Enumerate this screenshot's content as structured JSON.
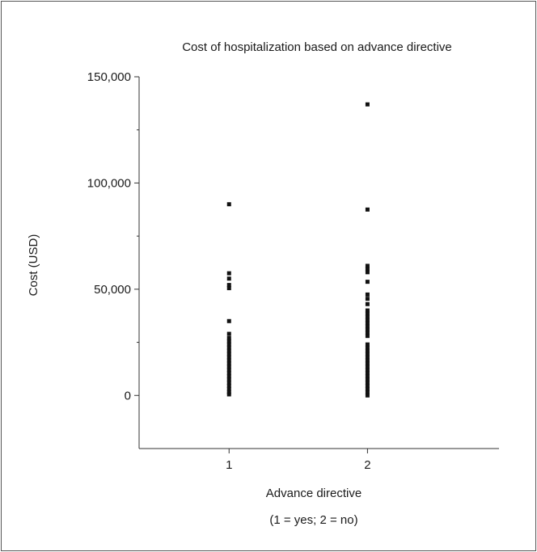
{
  "chart_data": {
    "type": "scatter",
    "title": "Cost of hospitalization based on advance directive",
    "xlabel": "Advance directive",
    "xlabel_note": "(1 = yes; 2 = no)",
    "ylabel": "Cost (USD)",
    "x_ticks": [
      {
        "value": 1,
        "label": "1"
      },
      {
        "value": 2,
        "label": "2"
      }
    ],
    "y_ticks": [
      {
        "value": 0,
        "label": "0"
      },
      {
        "value": 50000,
        "label": "50,000"
      },
      {
        "value": 100000,
        "label": "100,000"
      },
      {
        "value": 150000,
        "label": "150,000"
      }
    ],
    "y_minor_ticks": [
      25000,
      75000,
      125000
    ],
    "xlim": [
      0.35,
      2.95
    ],
    "ylim": [
      -25000,
      150000
    ],
    "grid": false,
    "legend": "none",
    "series": [
      {
        "x": 1,
        "values": [
          90000,
          57500,
          55000,
          52000,
          50500,
          35000,
          29000,
          27000,
          25500,
          24000,
          22500,
          21000,
          19500,
          18000,
          16500,
          15000,
          13500,
          12000,
          10500,
          9000,
          7500,
          6000,
          4500,
          3000,
          1500,
          500
        ]
      },
      {
        "x": 2,
        "values": [
          137000,
          87500,
          61000,
          59500,
          58000,
          53500,
          47500,
          45500,
          43000,
          40000,
          38500,
          37000,
          35500,
          34000,
          32500,
          31000,
          29500,
          28000,
          24000,
          22500,
          21000,
          19500,
          18000,
          16500,
          15000,
          13500,
          12000,
          10500,
          9000,
          7500,
          6000,
          4500,
          3000,
          1500,
          0
        ]
      }
    ]
  }
}
